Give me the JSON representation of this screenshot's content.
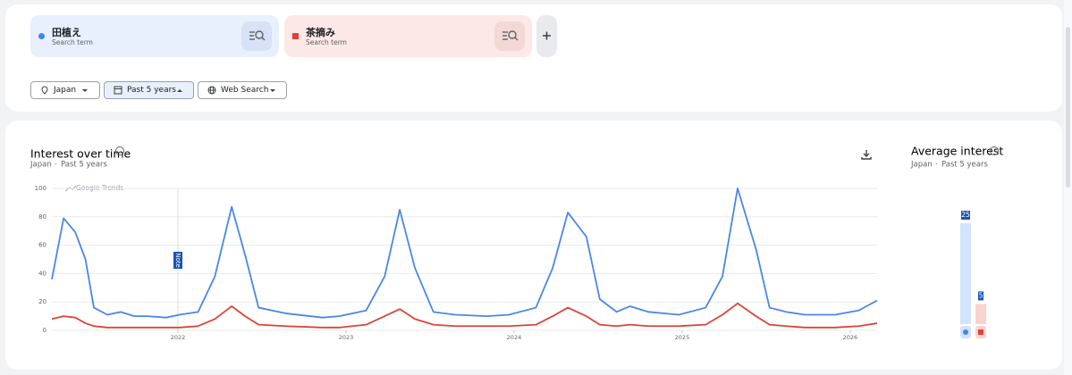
{
  "search_terms": [
    {
      "label": "田植え",
      "sublabel": "Search term",
      "color": "#4285f4"
    },
    {
      "label": "茶摘み",
      "sublabel": "Search term",
      "color": "#db4437"
    }
  ],
  "filters": [
    "Japan",
    "Past 5 years",
    "Web Search"
  ],
  "chart_data": [
    {
      "type": "line",
      "title": "Interest over time",
      "region": "Japan",
      "period": "Past 5 years",
      "watermark": "Google Trends",
      "annotation": "Note",
      "x": [
        2021.25,
        2021.32,
        2021.39,
        2021.45,
        2021.5,
        2021.58,
        2021.66,
        2021.74,
        2021.82,
        2021.93,
        2022.01,
        2022.12,
        2022.22,
        2022.32,
        2022.4,
        2022.48,
        2022.64,
        2022.86,
        2022.96,
        2023.12,
        2023.23,
        2023.32,
        2023.41,
        2023.52,
        2023.65,
        2023.84,
        2023.97,
        2024.13,
        2024.23,
        2024.32,
        2024.43,
        2024.51,
        2024.61,
        2024.69,
        2024.8,
        2024.98,
        2025.14,
        2025.24,
        2025.33,
        2025.44,
        2025.52,
        2025.62,
        2025.73,
        2025.91,
        2026.05,
        2026.16
      ],
      "series": [
        {
          "name": "田植え",
          "color": "#4a86e8",
          "values": [
            36,
            79,
            69,
            50,
            16,
            11,
            13,
            10,
            10,
            9,
            11,
            13,
            38,
            87,
            53,
            16,
            12,
            9,
            10,
            14,
            38,
            85,
            44,
            13,
            11,
            10,
            11,
            16,
            44,
            83,
            66,
            22,
            13,
            17,
            13,
            11,
            16,
            38,
            100,
            57,
            16,
            13,
            11,
            11,
            14,
            21
          ]
        },
        {
          "name": "茶摘み",
          "color": "#db4437",
          "values": [
            8,
            10,
            9,
            5,
            3,
            2,
            2,
            2,
            2,
            2,
            2,
            3,
            8,
            17,
            10,
            4,
            3,
            2,
            2,
            4,
            10,
            15,
            8,
            4,
            3,
            3,
            3,
            4,
            10,
            16,
            10,
            4,
            3,
            4,
            3,
            3,
            4,
            11,
            19,
            10,
            4,
            3,
            2,
            2,
            3,
            5
          ]
        }
      ],
      "xlim": [
        2021.25,
        2026.16
      ],
      "xticks": [
        2022,
        2023,
        2024,
        2025,
        2026
      ],
      "ylim": [
        0,
        100
      ],
      "yticks": [
        0,
        20,
        40,
        60,
        80,
        100
      ],
      "grid": true
    },
    {
      "type": "bar",
      "title": "Average interest",
      "region": "Japan",
      "period": "Past 5 years",
      "values": [
        25,
        5
      ],
      "colors": [
        "#4285f4",
        "#db4437"
      ],
      "bar_colors": [
        "#d2e3fc",
        "#fad2cf"
      ]
    }
  ]
}
